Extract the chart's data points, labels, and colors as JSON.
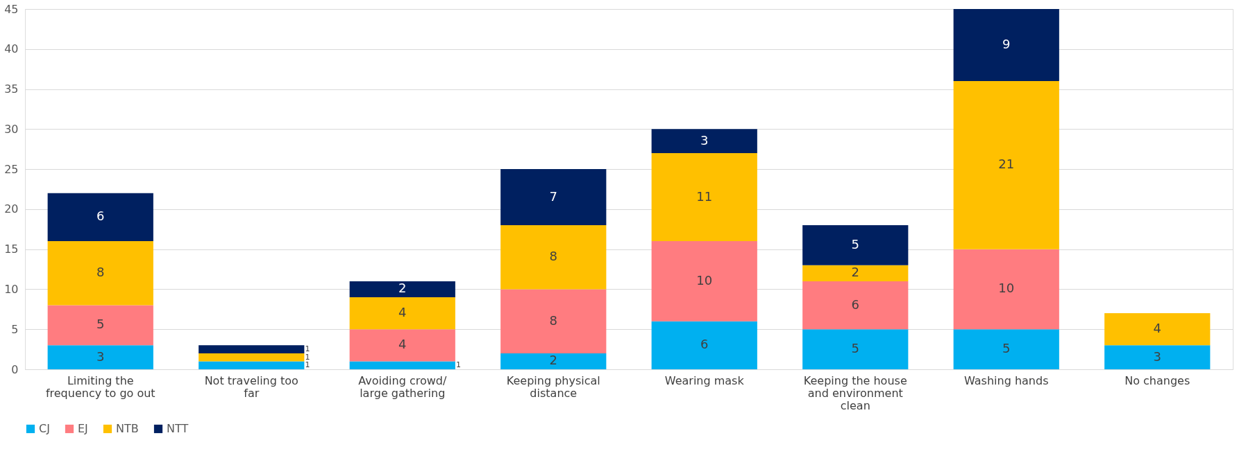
{
  "chart_data": {
    "type": "bar",
    "stacked": true,
    "categories": [
      "Limiting the frequency to go out",
      "Not traveling too far",
      "Avoiding crowd/ large gathering",
      "Keeping physical distance",
      "Wearing mask",
      "Keeping the house and environment clean",
      "Washing hands",
      "No changes"
    ],
    "series": [
      {
        "name": "CJ",
        "color": "#00b0f0",
        "values": [
          3,
          1,
          1,
          2,
          6,
          5,
          5,
          3
        ]
      },
      {
        "name": "EJ",
        "color": "#ff7c80",
        "values": [
          5,
          null,
          4,
          8,
          10,
          6,
          10,
          null
        ]
      },
      {
        "name": "NTB",
        "color": "#ffc000",
        "values": [
          8,
          1,
          4,
          8,
          11,
          2,
          21,
          4
        ]
      },
      {
        "name": "NTT",
        "color": "#002060",
        "values": [
          6,
          1,
          2,
          7,
          3,
          5,
          9,
          null
        ]
      }
    ],
    "ylim": [
      0,
      45
    ],
    "yticks": [
      0,
      5,
      10,
      15,
      20,
      25,
      30,
      35,
      40,
      45
    ],
    "grid": "y",
    "legend": "bottom",
    "data_labels": true
  }
}
